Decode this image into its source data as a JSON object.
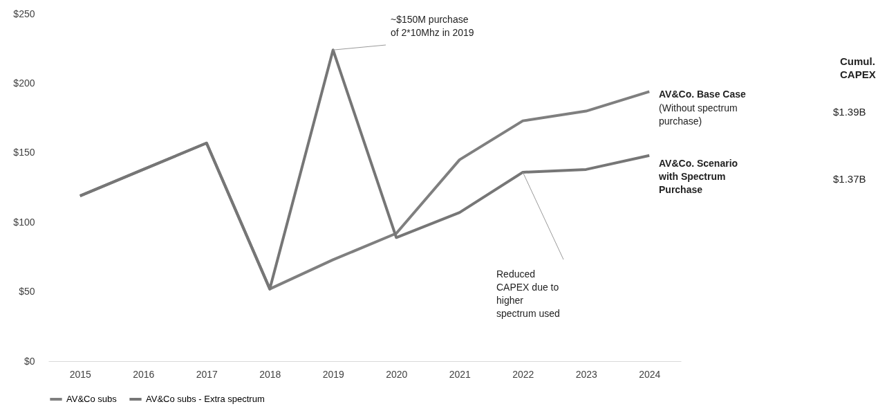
{
  "chart_data": {
    "type": "line",
    "categories": [
      "2015",
      "2016",
      "2017",
      "2018",
      "2019",
      "2020",
      "2021",
      "2022",
      "2023",
      "2024"
    ],
    "series": [
      {
        "name": "AV&Co subs",
        "color": "#7f7f7f",
        "values": [
          119,
          138,
          157,
          52,
          73,
          92,
          145,
          173,
          180,
          194
        ]
      },
      {
        "name": "AV&Co subs - Extra spectrum",
        "color": "#767676",
        "values": [
          119,
          138,
          157,
          52,
          224,
          89,
          107,
          136,
          138,
          148
        ]
      }
    ],
    "ylim": [
      0,
      250
    ],
    "yticks": [
      {
        "value": 0,
        "label": "$0"
      },
      {
        "value": 50,
        "label": "$50"
      },
      {
        "value": 100,
        "label": "$100"
      },
      {
        "value": 150,
        "label": "$150"
      },
      {
        "value": 200,
        "label": "$200"
      },
      {
        "value": 250,
        "label": "$250"
      }
    ],
    "grid": false,
    "legend": "bottom",
    "marker": "none",
    "line_style": "solid",
    "annotations": [
      {
        "text": "~$150M purchase\nof 2*10Mhz in 2019",
        "x": "2019",
        "y": 224
      },
      "AV&Co. Base Case",
      "(Without spectrum\npurchase)",
      "AV&Co. Scenario\nwith Spectrum\nPurchase",
      {
        "text": "Reduced\nCAPEX due to\nhigher\nspectrum used",
        "x": "2022",
        "y": 136
      },
      "Cumul.\nCAPEX",
      "$1.39B",
      "$1.37B"
    ]
  }
}
